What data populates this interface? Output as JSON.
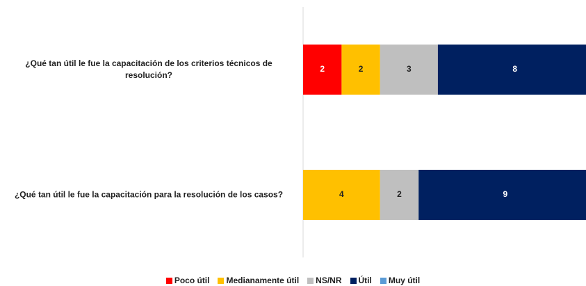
{
  "chart_data": {
    "type": "stacked-barh",
    "categories": [
      "¿Qué tan útil le fue la capacitación de los criterios técnicos de resolución?",
      "¿Qué tan útil le fue la capacitación para la resolución de los casos?"
    ],
    "series": [
      {
        "name": "Poco útil",
        "color": "#ff0000",
        "values": [
          2,
          0
        ]
      },
      {
        "name": "Medianamente útil",
        "color": "#ffc000",
        "values": [
          2,
          4
        ]
      },
      {
        "name": "NS/NR",
        "color": "#bfbfbf",
        "values": [
          3,
          2
        ]
      },
      {
        "name": "Útil",
        "color": "#002060",
        "values": [
          8,
          9
        ]
      },
      {
        "name": "Muy útil",
        "color": "#5b9bd5",
        "values": [
          0,
          0
        ]
      }
    ],
    "legend": "bottom"
  }
}
